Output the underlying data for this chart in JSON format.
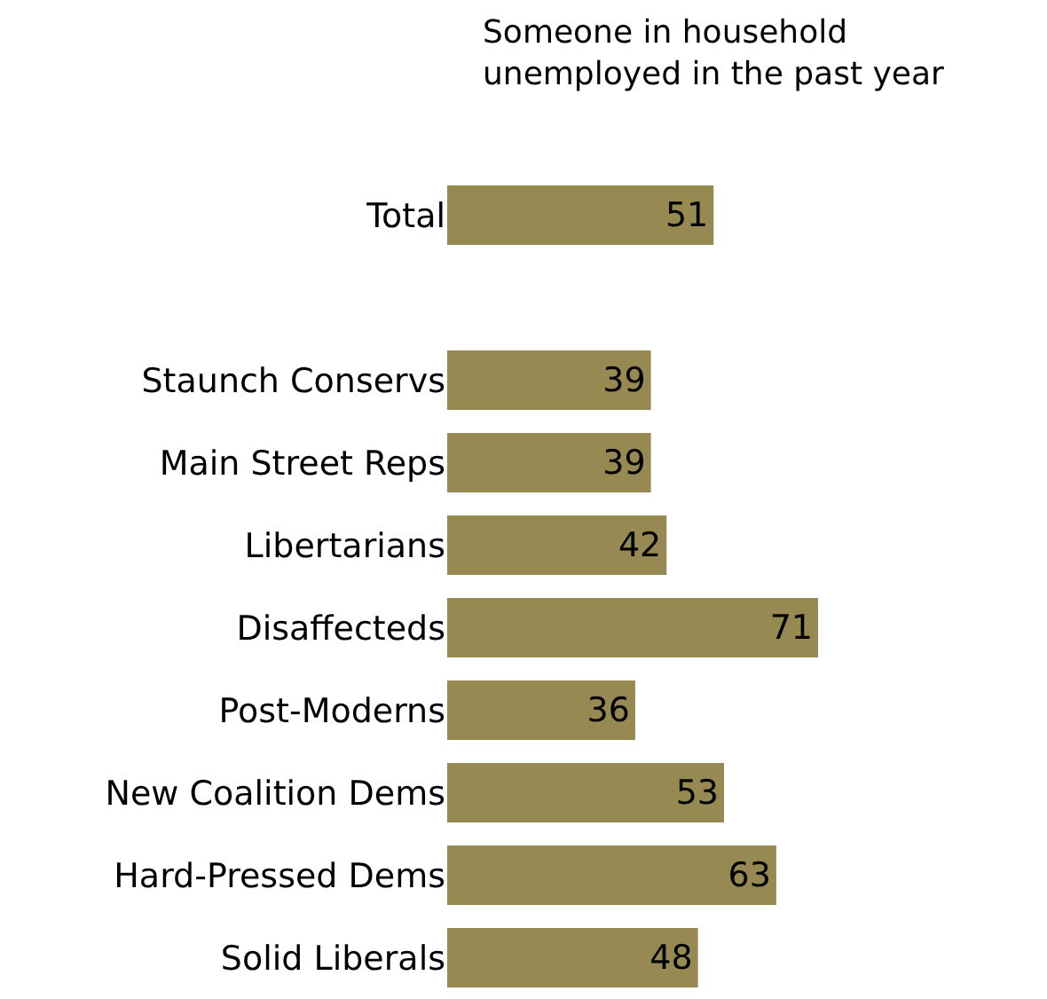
{
  "chart_data": {
    "type": "bar",
    "orientation": "horizontal",
    "title": "Someone in household\nunemployed in the past year",
    "categories": [
      "Total",
      null,
      "Staunch Conservs",
      "Main Street Reps",
      "Libertarians",
      "Disaffecteds",
      "Post-Moderns",
      "New Coalition Dems",
      "Hard-Pressed Dems",
      "Solid Liberals"
    ],
    "values": [
      51,
      null,
      39,
      39,
      42,
      71,
      36,
      53,
      63,
      48
    ],
    "color": "#968a52",
    "data_labels": true
  }
}
